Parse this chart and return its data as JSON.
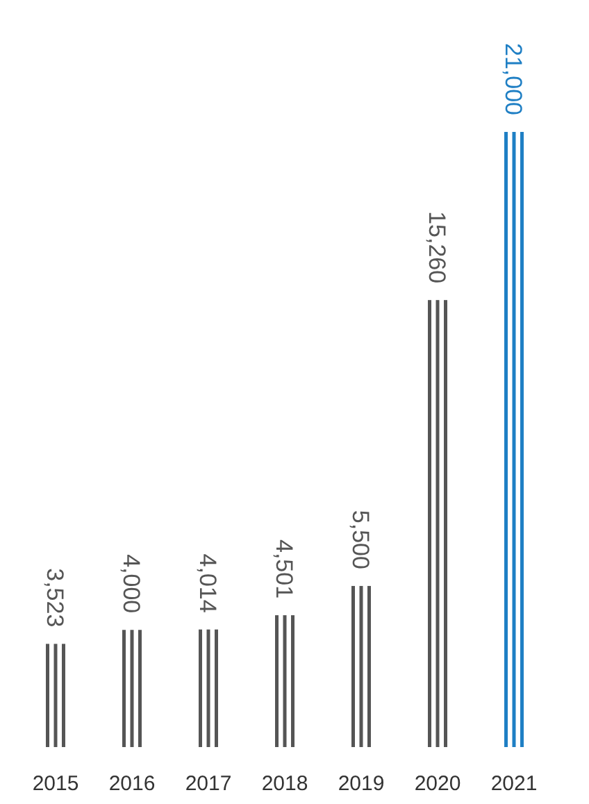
{
  "chart_data": {
    "type": "bar",
    "categories": [
      "2015",
      "2016",
      "2017",
      "2018",
      "2019",
      "2020",
      "2021"
    ],
    "values": [
      3523,
      4000,
      4014,
      4501,
      5500,
      15260,
      21000
    ],
    "colors": [
      "#555555",
      "#555555",
      "#555555",
      "#555555",
      "#555555",
      "#555555",
      "#1f7fc4"
    ],
    "value_labels": [
      "3,523",
      "4,000",
      "4,014",
      "4,501",
      "5,500",
      "15,260",
      "21,000"
    ]
  }
}
